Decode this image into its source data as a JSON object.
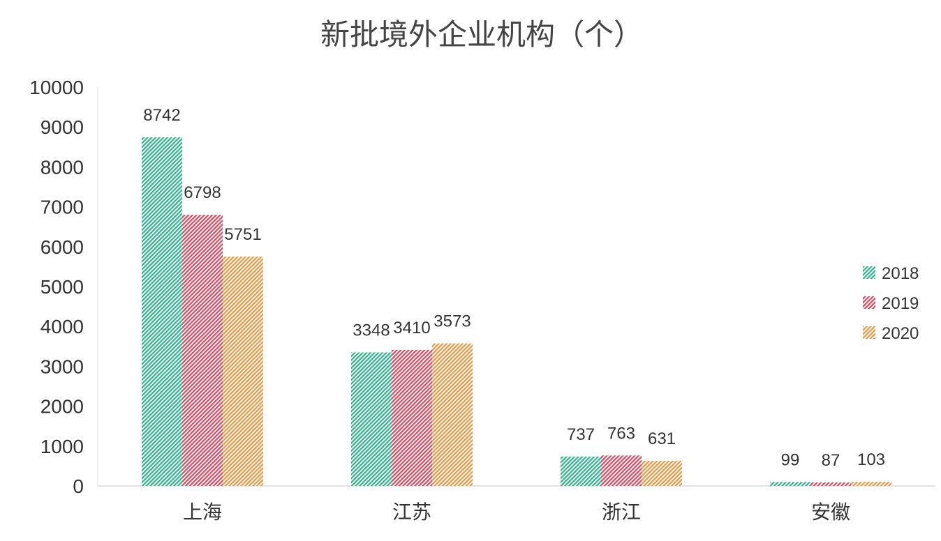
{
  "chart_data": {
    "type": "bar",
    "title": "新批境外企业机构（个）",
    "categories": [
      "上海",
      "江苏",
      "浙江",
      "安徽"
    ],
    "series": [
      {
        "name": "2018",
        "values": [
          8742,
          3348,
          737,
          99
        ],
        "color": "#2db28a"
      },
      {
        "name": "2019",
        "values": [
          6798,
          3410,
          763,
          87
        ],
        "color": "#d9485f"
      },
      {
        "name": "2020",
        "values": [
          5751,
          3573,
          631,
          103
        ],
        "color": "#e8963f"
      }
    ],
    "ylim": [
      0,
      10000
    ],
    "yticks": [
      0,
      1000,
      2000,
      3000,
      4000,
      5000,
      6000,
      7000,
      8000,
      9000,
      10000
    ],
    "legend_position": "right",
    "grid": false
  }
}
